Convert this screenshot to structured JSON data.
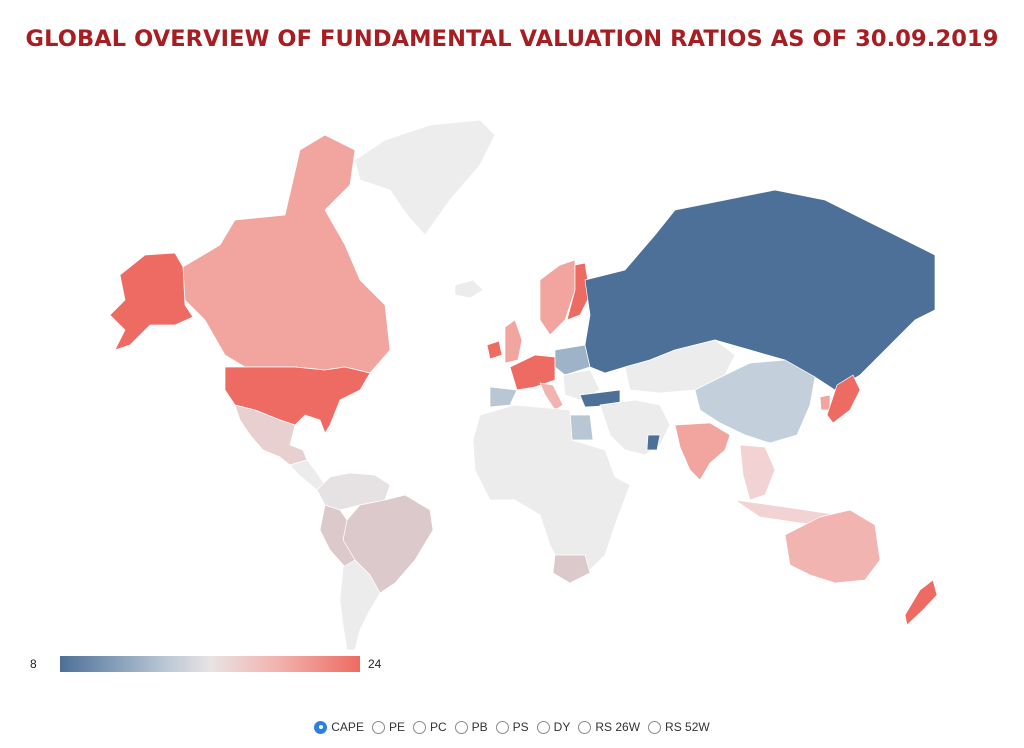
{
  "title": "GLOBAL OVERVIEW OF FUNDAMENTAL VALUATION RATIOS AS OF 30.09.2019",
  "legend": {
    "min": "8",
    "max": "24"
  },
  "colors": {
    "low": "#4d7098",
    "mid_low": "#b9c7d4",
    "neutral": "#e8e3e4",
    "mid_high": "#f2b4b0",
    "high": "#ee6b63",
    "no_data": "#ececec",
    "selected_radio": "#2f7fe0",
    "title": "#a61e22"
  },
  "metrics": [
    {
      "label": "CAPE",
      "selected": true
    },
    {
      "label": "PE",
      "selected": false
    },
    {
      "label": "PC",
      "selected": false
    },
    {
      "label": "PB",
      "selected": false
    },
    {
      "label": "PS",
      "selected": false
    },
    {
      "label": "DY",
      "selected": false
    },
    {
      "label": "RS 26W",
      "selected": false
    },
    {
      "label": "RS 52W",
      "selected": false
    }
  ]
}
